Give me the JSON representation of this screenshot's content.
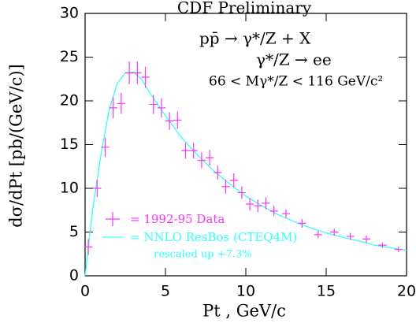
{
  "chart_data": {
    "type": "scatter-line",
    "title": "CDF Preliminary",
    "x_label": "Pt , GeV/c",
    "y_label": "dσ/dPt [pb/(GeV/c)]",
    "annotations": [
      "pp̄ → γ*/Z + X",
      "γ*/Z → ee",
      "66 < Mγ*/Z < 116 GeV/c²",
      "rescaled up +7.3%"
    ],
    "xlim": [
      0,
      20
    ],
    "ylim": [
      0,
      30
    ],
    "xticks": [
      0,
      5,
      10,
      15,
      20
    ],
    "yticks": [
      0,
      5,
      10,
      15,
      20,
      25,
      30
    ],
    "series": [
      {
        "name": "= 1992-95 Data",
        "color": "#ff33ff",
        "x": [
          0.2,
          0.75,
          1.25,
          1.75,
          2.25,
          2.75,
          3.25,
          3.75,
          4.25,
          4.75,
          5.25,
          5.75,
          6.25,
          6.75,
          7.25,
          7.75,
          8.25,
          8.75,
          9.25,
          9.75,
          10.25,
          10.75,
          11.25,
          11.75,
          12.5,
          13.5,
          14.5,
          15.5,
          16.5,
          17.5,
          18.5,
          19.5
        ],
        "values": [
          3.3,
          10.0,
          14.7,
          19.2,
          19.7,
          23.2,
          23.2,
          22.7,
          19.6,
          19.2,
          17.7,
          17.8,
          14.3,
          14.3,
          13.2,
          13.5,
          11.8,
          10.2,
          10.9,
          9.5,
          8.2,
          8.0,
          8.3,
          7.4,
          7.1,
          6.0,
          4.7,
          5.0,
          4.5,
          4.2,
          3.5,
          3.0
        ],
        "errors": [
          0.9,
          1.0,
          1.1,
          1.2,
          1.2,
          1.3,
          1.3,
          1.2,
          1.1,
          1.1,
          1.0,
          1.0,
          0.9,
          0.9,
          0.9,
          0.9,
          0.8,
          0.8,
          0.8,
          0.7,
          0.7,
          0.7,
          0.7,
          0.6,
          0.5,
          0.5,
          0.4,
          0.4,
          0.4,
          0.4,
          0.3,
          0.3
        ]
      },
      {
        "name": "= NNLO ResBos (CTEQ4M)",
        "color": "#33ffff",
        "x": [
          0,
          0.5,
          1,
          1.5,
          2,
          2.5,
          3,
          3.5,
          4,
          5,
          6,
          7,
          8,
          9,
          10,
          11,
          12,
          13,
          14,
          15,
          16,
          17,
          18,
          19,
          20
        ],
        "values": [
          0,
          8,
          14,
          19,
          22,
          23.2,
          23.3,
          22.5,
          21,
          18.3,
          15.8,
          13.8,
          12,
          10.5,
          9.1,
          8,
          7,
          6.2,
          5.5,
          4.9,
          4.4,
          4,
          3.5,
          3.2,
          2.9
        ]
      }
    ]
  }
}
